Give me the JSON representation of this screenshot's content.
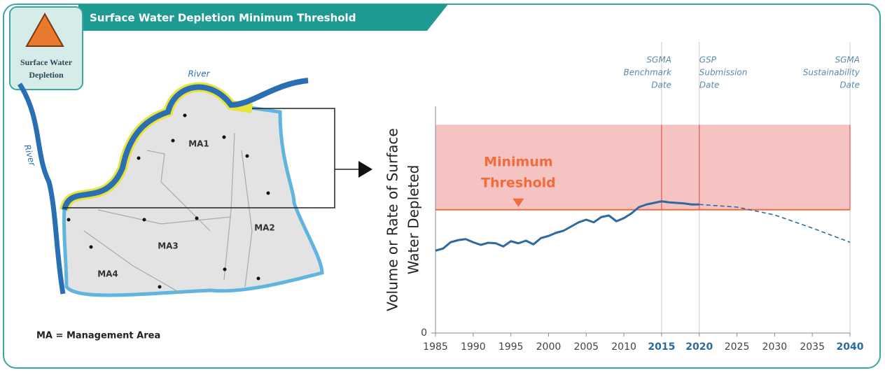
{
  "header": {
    "title": "Surface Water Depletion Minimum Threshold",
    "icon_label": [
      "Surface Water",
      "Depletion"
    ]
  },
  "map": {
    "river_labels": [
      "River",
      "River"
    ],
    "areas": [
      "MA1",
      "MA2",
      "MA3",
      "MA4"
    ],
    "legend": "MA = Management Area"
  },
  "chart_data": {
    "type": "line",
    "ylabel": [
      "Volume or Rate of Surface",
      "Water Depleted"
    ],
    "xlim": [
      1985,
      2040
    ],
    "xticks": [
      1985,
      1990,
      1995,
      2000,
      2005,
      2010,
      2015,
      2020,
      2025,
      2030,
      2035,
      2040
    ],
    "highlight_xticks": [
      2015,
      2020,
      2040
    ],
    "ylim": [
      0,
      4.32
    ],
    "yticks": [
      0
    ],
    "series": [
      {
        "color": "#2f6a9e",
        "style": "solid",
        "x": [
          1985,
          1986,
          1987,
          1988,
          1989,
          1990,
          1991,
          1992,
          1993,
          1994,
          1995,
          1996,
          1997,
          1998,
          1999,
          2000,
          2001,
          2002,
          2003,
          2004,
          2005,
          2006,
          2007,
          2008,
          2009,
          2010,
          2011,
          2012,
          2013,
          2014,
          2015,
          2016,
          2017,
          2018,
          2019,
          2020
        ],
        "values": [
          1.57,
          1.61,
          1.73,
          1.77,
          1.79,
          1.73,
          1.68,
          1.72,
          1.71,
          1.65,
          1.75,
          1.71,
          1.76,
          1.69,
          1.81,
          1.85,
          1.91,
          1.95,
          2.03,
          2.11,
          2.16,
          2.11,
          2.21,
          2.24,
          2.13,
          2.19,
          2.28,
          2.4,
          2.45,
          2.48,
          2.51,
          2.49,
          2.48,
          2.47,
          2.45,
          2.45
        ]
      },
      {
        "color": "#2f6a9e",
        "style": "dashed",
        "x": [
          2020,
          2025,
          2030,
          2035,
          2040
        ],
        "values": [
          2.45,
          2.4,
          2.25,
          2.0,
          1.73
        ]
      }
    ],
    "threshold": {
      "value": 2.35,
      "band_top": 3.97,
      "label": [
        "Minimum",
        "Threshold"
      ],
      "label_x": 1996,
      "color": "#f26b3a",
      "band_color": "#f6c3c3"
    },
    "vlines": [
      {
        "x": 2015,
        "label": [
          "SGMA",
          "Benchmark",
          "Date"
        ]
      },
      {
        "x": 2020,
        "label": [
          "GSP",
          "Submission",
          "Date"
        ]
      },
      {
        "x": 2040,
        "label": [
          "SGMA",
          "Sustainability",
          "Date"
        ]
      }
    ]
  }
}
